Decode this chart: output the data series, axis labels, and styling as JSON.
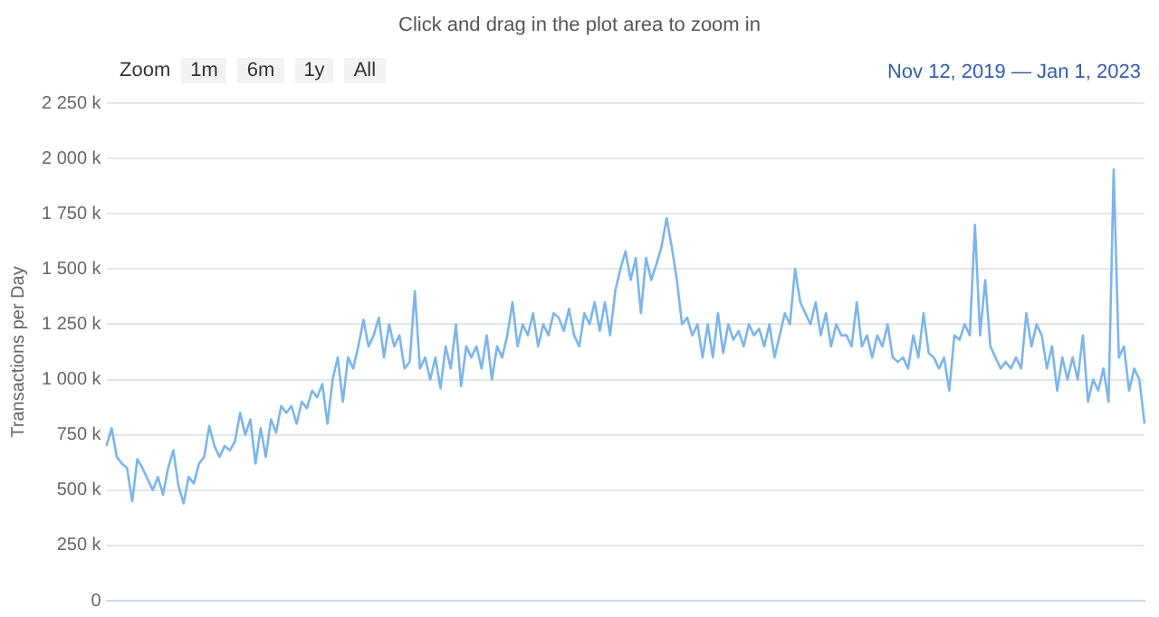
{
  "chart_data": {
    "type": "line",
    "subtitle": "Click and drag in the plot area to zoom in",
    "annotations": [
      "Zoom",
      "1m",
      "6m",
      "1y",
      "All",
      "Nov 12, 2019 — Jan 1, 2023"
    ],
    "ylabel": "Transactions per Day",
    "color": "#7cb5ec",
    "marker": "none",
    "grid": "y",
    "legend": false,
    "tick_labels": "y",
    "ylim": [
      0,
      2250
    ],
    "yticks": [
      {
        "value": 0,
        "label": "0"
      },
      {
        "value": 250,
        "label": "250 k"
      },
      {
        "value": 500,
        "label": "500 k"
      },
      {
        "value": 750,
        "label": "750 k"
      },
      {
        "value": 1000,
        "label": "1 000 k"
      },
      {
        "value": 1250,
        "label": "1 250 k"
      },
      {
        "value": 1500,
        "label": "1 500 k"
      },
      {
        "value": 1750,
        "label": "1 750 k"
      },
      {
        "value": 2000,
        "label": "2 000 k"
      },
      {
        "value": 2250,
        "label": "2 250 k"
      }
    ],
    "categories": [
      null,
      null,
      null,
      null,
      null,
      null,
      null,
      null,
      null,
      null,
      null,
      null,
      null,
      null,
      null,
      null,
      null,
      null,
      null,
      null,
      null,
      null,
      null,
      null,
      null,
      null,
      null,
      null,
      null,
      null,
      null,
      null,
      null,
      null,
      null,
      null,
      null,
      null,
      null,
      null,
      null,
      null,
      null,
      null,
      null,
      null,
      null,
      null,
      null,
      null,
      null,
      null,
      null,
      null,
      null,
      null,
      null,
      null,
      null,
      null,
      null,
      null,
      null,
      null,
      null,
      null,
      null,
      null,
      null,
      null,
      null,
      null,
      null,
      null,
      null,
      null,
      null,
      null,
      null,
      null,
      null,
      null,
      null,
      null,
      null,
      null,
      null,
      null,
      null,
      null,
      null,
      null,
      null,
      null,
      null,
      null,
      null,
      null,
      null,
      null,
      null,
      null,
      null,
      null,
      null,
      null,
      null,
      null,
      null,
      null,
      null,
      null,
      null,
      null,
      null,
      null,
      null,
      null,
      null,
      null,
      null,
      null,
      null,
      null,
      null,
      null,
      null,
      null,
      null,
      null,
      null,
      null,
      null,
      null,
      null,
      null,
      null,
      null,
      null,
      null,
      null,
      null,
      null,
      null,
      null,
      null,
      null,
      null,
      null,
      null,
      null,
      null,
      null,
      null,
      null,
      null,
      null,
      null,
      null,
      null,
      null,
      null,
      null,
      null,
      null,
      null,
      null,
      null,
      null,
      null,
      null,
      null,
      null,
      null,
      null,
      null,
      null,
      null,
      null,
      null,
      null,
      null,
      null,
      null,
      null,
      null,
      null,
      null,
      null,
      null,
      null,
      null,
      null,
      null,
      null,
      null,
      null,
      null,
      null,
      null,
      null,
      null,
      null
    ],
    "values": [
      700,
      780,
      650,
      620,
      600,
      450,
      640,
      600,
      550,
      500,
      560,
      480,
      600,
      680,
      520,
      440,
      560,
      530,
      620,
      650,
      790,
      700,
      650,
      700,
      680,
      720,
      850,
      750,
      820,
      620,
      780,
      650,
      820,
      760,
      880,
      850,
      880,
      800,
      900,
      870,
      950,
      920,
      980,
      800,
      1000,
      1100,
      900,
      1100,
      1050,
      1150,
      1270,
      1150,
      1200,
      1280,
      1100,
      1250,
      1150,
      1200,
      1050,
      1080,
      1400,
      1050,
      1100,
      1000,
      1100,
      960,
      1150,
      1050,
      1250,
      970,
      1150,
      1100,
      1150,
      1050,
      1200,
      1000,
      1150,
      1100,
      1200,
      1350,
      1150,
      1250,
      1200,
      1300,
      1150,
      1250,
      1200,
      1300,
      1280,
      1220,
      1320,
      1200,
      1150,
      1300,
      1250,
      1350,
      1220,
      1350,
      1200,
      1400,
      1500,
      1580,
      1450,
      1550,
      1300,
      1550,
      1450,
      1520,
      1600,
      1730,
      1600,
      1450,
      1250,
      1280,
      1200,
      1250,
      1100,
      1250,
      1100,
      1300,
      1120,
      1250,
      1180,
      1220,
      1150,
      1250,
      1200,
      1230,
      1150,
      1250,
      1100,
      1200,
      1300,
      1250,
      1500,
      1350,
      1300,
      1250,
      1350,
      1200,
      1300,
      1150,
      1250,
      1200,
      1200,
      1150,
      1350,
      1150,
      1200,
      1100,
      1200,
      1150,
      1250,
      1100,
      1080,
      1100,
      1050,
      1200,
      1100,
      1300,
      1120,
      1100,
      1050,
      1100,
      950,
      1200,
      1180,
      1250,
      1200,
      1700,
      1200,
      1450,
      1150,
      1100,
      1050,
      1080,
      1050,
      1100,
      1050,
      1300,
      1150,
      1250,
      1200,
      1050,
      1150,
      950,
      1100,
      1000,
      1100,
      1000,
      1200,
      900,
      1000,
      950,
      1050,
      900,
      1950,
      1100,
      1150,
      950,
      1050,
      1000,
      800
    ]
  }
}
